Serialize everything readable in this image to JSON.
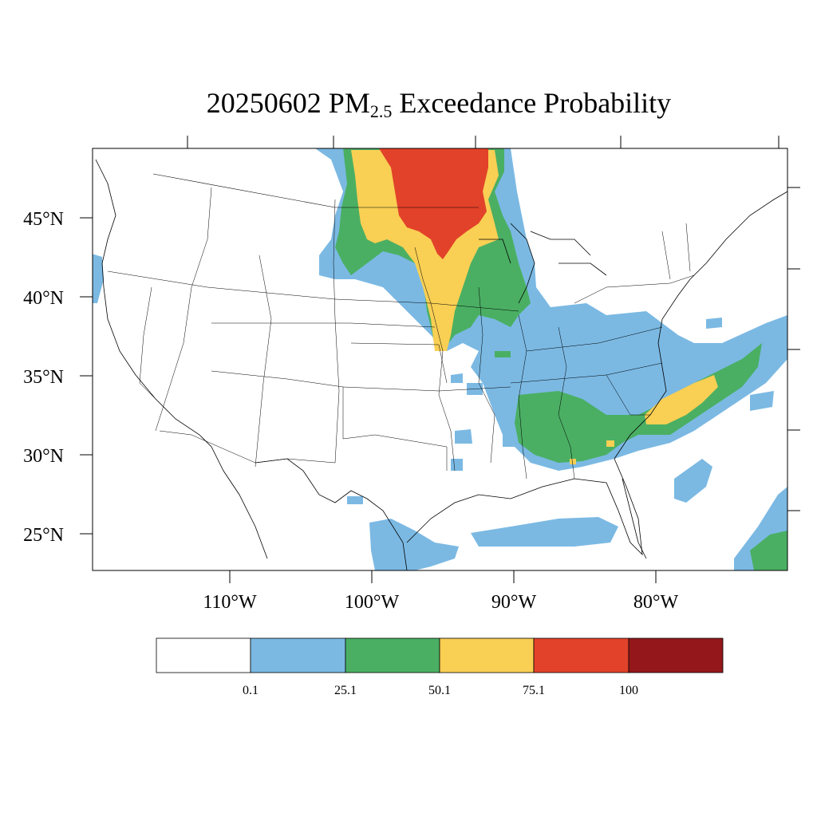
{
  "title": {
    "date": "20250602",
    "pollutant": "PM",
    "pollutant_sub": "2.5",
    "suffix": "Exceedance Probability"
  },
  "latitude_labels": [
    "45°N",
    "40°N",
    "35°N",
    "30°N",
    "25°N"
  ],
  "longitude_labels": [
    "110°W",
    "100°W",
    "90°W",
    "80°W"
  ],
  "colorbar": {
    "colors": [
      "#ffffff",
      "#7bb9e3",
      "#4aaf63",
      "#f9cf54",
      "#e2422a",
      "#94181b"
    ],
    "labels": [
      "0.1",
      "25.1",
      "50.1",
      "75.1",
      "100"
    ]
  },
  "legend_classes": [
    {
      "range": "< 0.1",
      "color": "#ffffff"
    },
    {
      "range": "0.1–25.1",
      "color": "#7bb9e3"
    },
    {
      "range": "25.1–50.1",
      "color": "#4aaf63"
    },
    {
      "range": "50.1–75.1",
      "color": "#f9cf54"
    },
    {
      "range": "75.1–100",
      "color": "#e2422a"
    },
    {
      "range": "> 100",
      "color": "#94181b"
    }
  ]
}
